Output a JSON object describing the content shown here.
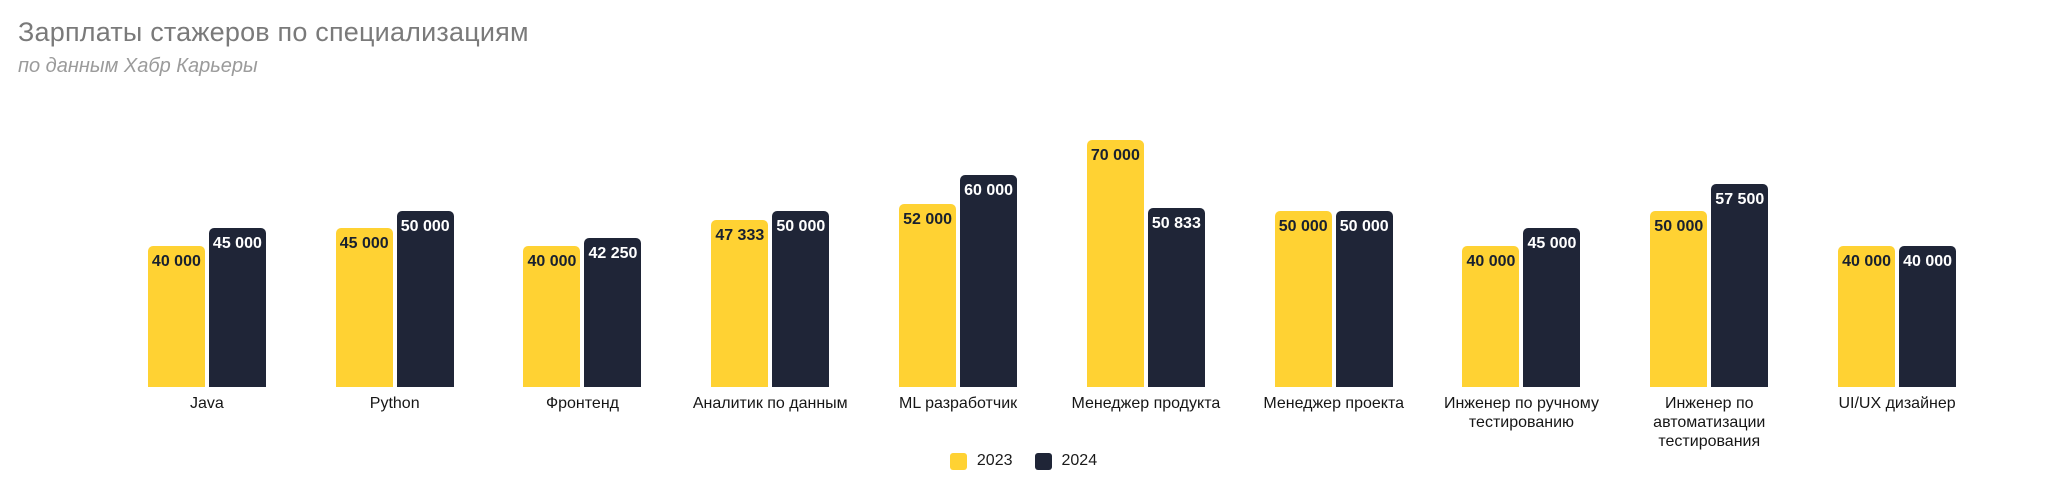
{
  "header": {
    "title": "Зарплаты стажеров по специализациям",
    "subtitle": "по данным Хабр Карьеры"
  },
  "colors": {
    "series_2023": "#FFD233",
    "series_2024": "#1F2537",
    "value_text_on_yellow": "#18202F",
    "value_text_on_navy": "#FFFFFF",
    "title_text": "#7A7A7A",
    "subtitle_text": "#9B9B9B",
    "category_text": "#161616",
    "background": "#FFFFFF"
  },
  "chart_data": {
    "type": "bar",
    "title": "Зарплаты стажеров по специализациям",
    "subtitle": "по данным Хабр Карьеры",
    "categories": [
      "Java",
      "Python",
      "Фронтенд",
      "Аналитик по данным",
      "ML разработчик",
      "Менеджер продукта",
      "Менеджер проекта",
      "Инженер по ручному тестированию",
      "Инженер по автоматизации тестирования",
      "UI/UX дизайнер"
    ],
    "series": [
      {
        "name": "2023",
        "color": "#FFD233",
        "label_color": "#18202F",
        "values": [
          40000,
          45000,
          40000,
          47333,
          52000,
          70000,
          50000,
          40000,
          50000,
          40000
        ],
        "labels": [
          "40 000",
          "45 000",
          "40 000",
          "47 333",
          "52 000",
          "70 000",
          "50 000",
          "40 000",
          "50 000",
          "40 000"
        ]
      },
      {
        "name": "2024",
        "color": "#1F2537",
        "label_color": "#FFFFFF",
        "values": [
          45000,
          50000,
          42250,
          50000,
          60000,
          50833,
          50000,
          45000,
          57500,
          40000
        ],
        "labels": [
          "45 000",
          "50 000",
          "42 250",
          "50 000",
          "60 000",
          "50 833",
          "50 000",
          "45 000",
          "57 500",
          "40 000"
        ]
      }
    ],
    "xlabel": "",
    "ylabel": "",
    "ylim": [
      0,
      78000
    ],
    "grid": false,
    "axes_visible": false,
    "value_labels_position": "inside-top",
    "legend_position": "bottom-center",
    "legend": [
      "2023",
      "2024"
    ]
  }
}
